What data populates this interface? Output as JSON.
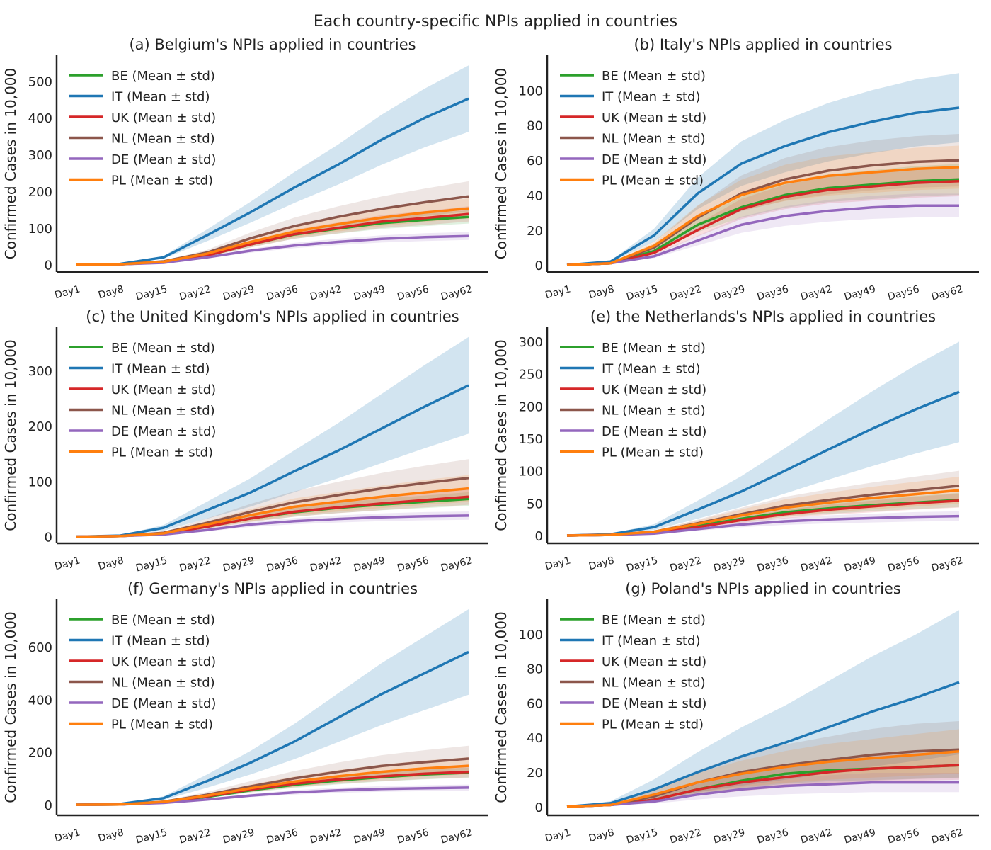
{
  "figure_title": "Each country-specific NPIs applied in countries",
  "colors": {
    "BE": "#2ca02c",
    "IT": "#1f77b4",
    "UK": "#d62728",
    "NL": "#8c564b",
    "DE": "#9467bd",
    "PL": "#ff7f0e"
  },
  "chart_data": [
    {
      "type": "line",
      "title": "(a) Belgium's NPIs applied in countries",
      "ylabel": "Confirmed Cases in 10,000",
      "x_ticks": [
        "Day1",
        "Day8",
        "Day15",
        "Day22",
        "Day29",
        "Day36",
        "Day42",
        "Day49",
        "Day56",
        "Day62"
      ],
      "yticks": [
        0,
        100,
        200,
        300,
        400,
        500
      ],
      "ylim": [
        -20,
        570
      ],
      "legend": "top-left",
      "series": [
        {
          "name": "BE (Mean ± std)",
          "key": "BE",
          "values": [
            0,
            1,
            7,
            25,
            55,
            82,
            98,
            113,
            122,
            130
          ],
          "std_frac": 0.14
        },
        {
          "name": "IT (Mean ± std)",
          "key": "IT",
          "values": [
            0,
            2,
            20,
            80,
            143,
            210,
            272,
            340,
            400,
            452
          ],
          "std_frac": 0.2
        },
        {
          "name": "UK (Mean ± std)",
          "key": "UK",
          "values": [
            0,
            1,
            6,
            25,
            55,
            83,
            100,
            117,
            127,
            138
          ],
          "std_frac": 0.15
        },
        {
          "name": "NL (Mean ± std)",
          "key": "NL",
          "values": [
            0,
            1,
            9,
            33,
            72,
            105,
            130,
            152,
            170,
            186
          ],
          "std_frac": 0.22
        },
        {
          "name": "DE (Mean ± std)",
          "key": "DE",
          "values": [
            0,
            1,
            5,
            20,
            38,
            52,
            62,
            70,
            75,
            78
          ],
          "std_frac": 0.14
        },
        {
          "name": "PL (Mean ± std)",
          "key": "PL",
          "values": [
            0,
            1,
            8,
            30,
            62,
            90,
            110,
            128,
            142,
            153
          ],
          "std_frac": 0.18
        }
      ]
    },
    {
      "type": "line",
      "title": "(b) Italy's NPIs applied in countries",
      "ylabel": "Confirmed Cases in 10,000",
      "x_ticks": [
        "Day1",
        "Day8",
        "Day15",
        "Day22",
        "Day29",
        "Day36",
        "Day42",
        "Day49",
        "Day56",
        "Day62"
      ],
      "yticks": [
        0,
        20,
        40,
        60,
        80,
        100
      ],
      "ylim": [
        -4,
        120
      ],
      "legend": "top-left",
      "series": [
        {
          "name": "BE (Mean ± std)",
          "key": "BE",
          "values": [
            0,
            1,
            8,
            23,
            33,
            40,
            44,
            46,
            48,
            49
          ],
          "std_frac": 0.18
        },
        {
          "name": "IT (Mean ± std)",
          "key": "IT",
          "values": [
            0,
            2,
            17,
            41,
            58,
            68,
            76,
            82,
            87,
            90
          ],
          "std_frac": 0.22
        },
        {
          "name": "UK (Mean ± std)",
          "key": "UK",
          "values": [
            0,
            1,
            7,
            20,
            32,
            39,
            43,
            45,
            47,
            48
          ],
          "std_frac": 0.18
        },
        {
          "name": "NL (Mean ± std)",
          "key": "NL",
          "values": [
            0,
            1,
            10,
            27,
            41,
            49,
            54,
            57,
            59,
            60
          ],
          "std_frac": 0.25
        },
        {
          "name": "DE (Mean ± std)",
          "key": "DE",
          "values": [
            0,
            1,
            5,
            14,
            23,
            28,
            31,
            33,
            34,
            34
          ],
          "std_frac": 0.2
        },
        {
          "name": "PL (Mean ± std)",
          "key": "PL",
          "values": [
            0,
            1,
            11,
            28,
            40,
            47,
            51,
            53,
            55,
            56
          ],
          "std_frac": 0.22
        }
      ]
    },
    {
      "type": "line",
      "title": "(c) the United Kingdom's NPIs applied in countries",
      "ylabel": "Confirmed Cases in 10,000",
      "x_ticks": [
        "Day1",
        "Day8",
        "Day15",
        "Day22",
        "Day29",
        "Day36",
        "Day42",
        "Day49",
        "Day56",
        "Day62"
      ],
      "yticks": [
        0,
        100,
        200,
        300
      ],
      "ylim": [
        -12,
        378
      ],
      "legend": "top-left",
      "series": [
        {
          "name": "BE (Mean ± std)",
          "key": "BE",
          "values": [
            0,
            1,
            5,
            18,
            33,
            44,
            52,
            58,
            63,
            68
          ],
          "std_frac": 0.18
        },
        {
          "name": "IT (Mean ± std)",
          "key": "IT",
          "values": [
            0,
            2,
            16,
            48,
            80,
            118,
            155,
            195,
            235,
            273
          ],
          "std_frac": 0.32
        },
        {
          "name": "UK (Mean ± std)",
          "key": "UK",
          "values": [
            0,
            1,
            5,
            18,
            33,
            45,
            53,
            60,
            66,
            72
          ],
          "std_frac": 0.2
        },
        {
          "name": "NL (Mean ± std)",
          "key": "NL",
          "values": [
            0,
            1,
            7,
            25,
            45,
            62,
            75,
            87,
            97,
            106
          ],
          "std_frac": 0.32
        },
        {
          "name": "DE (Mean ± std)",
          "key": "DE",
          "values": [
            0,
            1,
            4,
            12,
            22,
            28,
            32,
            35,
            37,
            38
          ],
          "std_frac": 0.2
        },
        {
          "name": "PL (Mean ± std)",
          "key": "PL",
          "values": [
            0,
            1,
            6,
            22,
            39,
            54,
            63,
            72,
            80,
            87
          ],
          "std_frac": 0.28
        }
      ]
    },
    {
      "type": "line",
      "title": "(e) the Netherlands's NPIs applied in countries",
      "ylabel": "Confirmed Cases in 10,000",
      "x_ticks": [
        "Day1",
        "Day8",
        "Day15",
        "Day22",
        "Day29",
        "Day36",
        "Day42",
        "Day49",
        "Day56",
        "Day62"
      ],
      "yticks": [
        0,
        50,
        100,
        150,
        200,
        250,
        300
      ],
      "ylim": [
        -12,
        322
      ],
      "legend": "top-left",
      "series": [
        {
          "name": "BE (Mean ± std)",
          "key": "BE",
          "values": [
            0,
            1,
            5,
            15,
            26,
            36,
            42,
            47,
            51,
            55
          ],
          "std_frac": 0.2
        },
        {
          "name": "IT (Mean ± std)",
          "key": "IT",
          "values": [
            0,
            2,
            13,
            40,
            68,
            100,
            133,
            165,
            195,
            222
          ],
          "std_frac": 0.35
        },
        {
          "name": "UK (Mean ± std)",
          "key": "UK",
          "values": [
            0,
            1,
            4,
            13,
            24,
            33,
            40,
            45,
            50,
            54
          ],
          "std_frac": 0.2
        },
        {
          "name": "NL (Mean ± std)",
          "key": "NL",
          "values": [
            0,
            1,
            6,
            19,
            33,
            46,
            55,
            63,
            70,
            77
          ],
          "std_frac": 0.3
        },
        {
          "name": "DE (Mean ± std)",
          "key": "DE",
          "values": [
            0,
            1,
            3,
            10,
            17,
            22,
            25,
            27,
            29,
            30
          ],
          "std_frac": 0.25
        },
        {
          "name": "PL (Mean ± std)",
          "key": "PL",
          "values": [
            0,
            1,
            6,
            18,
            31,
            43,
            51,
            58,
            64,
            70
          ],
          "std_frac": 0.3
        }
      ]
    },
    {
      "type": "line",
      "title": "(f) Germany's NPIs applied in countries",
      "ylabel": "Confirmed Cases in 10,000",
      "x_ticks": [
        "Day1",
        "Day8",
        "Day15",
        "Day22",
        "Day29",
        "Day36",
        "Day42",
        "Day49",
        "Day56",
        "Day62"
      ],
      "yticks": [
        0,
        200,
        400,
        600
      ],
      "ylim": [
        -40,
        780
      ],
      "legend": "top-left",
      "series": [
        {
          "name": "BE (Mean ± std)",
          "key": "BE",
          "values": [
            0,
            1,
            10,
            30,
            55,
            76,
            92,
            105,
            115,
            122
          ],
          "std_frac": 0.16
        },
        {
          "name": "IT (Mean ± std)",
          "key": "IT",
          "values": [
            0,
            3,
            25,
            90,
            160,
            240,
            330,
            420,
            500,
            580
          ],
          "std_frac": 0.28
        },
        {
          "name": "UK (Mean ± std)",
          "key": "UK",
          "values": [
            0,
            1,
            10,
            32,
            58,
            80,
            96,
            108,
            118,
            125
          ],
          "std_frac": 0.17
        },
        {
          "name": "NL (Mean ± std)",
          "key": "NL",
          "values": [
            0,
            1,
            12,
            38,
            70,
            100,
            125,
            147,
            162,
            175
          ],
          "std_frac": 0.28
        },
        {
          "name": "DE (Mean ± std)",
          "key": "DE",
          "values": [
            0,
            1,
            7,
            20,
            35,
            47,
            55,
            60,
            63,
            65
          ],
          "std_frac": 0.18
        },
        {
          "name": "PL (Mean ± std)",
          "key": "PL",
          "values": [
            0,
            1,
            11,
            35,
            63,
            88,
            108,
            125,
            138,
            148
          ],
          "std_frac": 0.22
        }
      ]
    },
    {
      "type": "line",
      "title": "(g) Poland's NPIs applied in countries",
      "ylabel": "Confirmed Cases in 10,000",
      "x_ticks": [
        "Day1",
        "Day8",
        "Day15",
        "Day22",
        "Day29",
        "Day36",
        "Day42",
        "Day49",
        "Day56",
        "Day62"
      ],
      "yticks": [
        0,
        20,
        40,
        60,
        80,
        100
      ],
      "ylim": [
        -5,
        120
      ],
      "legend": "top-left",
      "series": [
        {
          "name": "BE (Mean ± std)",
          "key": "BE",
          "values": [
            0,
            1,
            4,
            10,
            15,
            19,
            21,
            22,
            23,
            24
          ],
          "std_frac": 0.3
        },
        {
          "name": "IT (Mean ± std)",
          "key": "IT",
          "values": [
            0,
            2,
            10,
            20,
            29,
            37,
            46,
            55,
            63,
            72
          ],
          "std_frac": 0.58
        },
        {
          "name": "UK (Mean ± std)",
          "key": "UK",
          "values": [
            0,
            1,
            4,
            10,
            14,
            17,
            20,
            22,
            23,
            24
          ],
          "std_frac": 0.35
        },
        {
          "name": "NL (Mean ± std)",
          "key": "NL",
          "values": [
            0,
            1,
            6,
            14,
            20,
            24,
            27,
            30,
            32,
            33
          ],
          "std_frac": 0.5
        },
        {
          "name": "DE (Mean ± std)",
          "key": "DE",
          "values": [
            0,
            1,
            3,
            7,
            10,
            12,
            13,
            14,
            14,
            14
          ],
          "std_frac": 0.4
        },
        {
          "name": "PL (Mean ± std)",
          "key": "PL",
          "values": [
            0,
            1,
            7,
            14,
            19,
            23,
            26,
            28,
            30,
            32
          ],
          "std_frac": 0.4
        }
      ]
    }
  ]
}
